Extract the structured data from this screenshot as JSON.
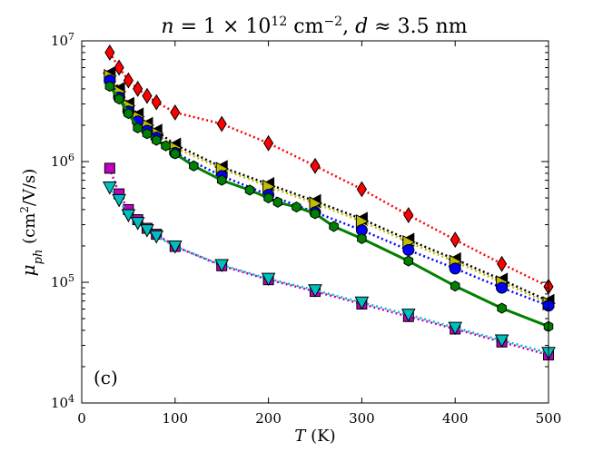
{
  "chart_data": {
    "type": "line",
    "title": "n = 1 × 10^12 cm^−2, d ≈ 3.5 nm",
    "title_parts": {
      "pre": "n",
      "mid": " = 1 × 10",
      "exp": "12",
      "unit": " cm",
      "unit_exp": "−2",
      "comma": ",",
      "d": " d",
      "rest": " ≈ 3.5 nm"
    },
    "xlabel": "T (K)",
    "xlabel_parts": {
      "var": "T",
      "unit": " (K)"
    },
    "ylabel": "μ_ph (cm²/V/s)",
    "ylabel_parts": {
      "var": "μ",
      "sub": "ph",
      "unit": " (cm",
      "unit_exp": "2",
      "unit_rest": "/V/s)"
    },
    "panel_label": "(c)",
    "xlim": [
      0,
      500
    ],
    "ylim": [
      10000,
      10000000
    ],
    "yscale": "log",
    "x_ticks": [
      0,
      100,
      200,
      300,
      400,
      500
    ],
    "x_tick_labels": [
      "0",
      "100",
      "200",
      "300",
      "400",
      "500"
    ],
    "y_ticks": [
      10000,
      100000,
      1000000,
      10000000
    ],
    "y_tick_labels": [
      {
        "base": "10",
        "exp": "4"
      },
      {
        "base": "10",
        "exp": "5"
      },
      {
        "base": "10",
        "exp": "6"
      },
      {
        "base": "10",
        "exp": "7"
      }
    ],
    "series": [
      {
        "name": "red-diamond",
        "color": "#ff0000",
        "marker": "diamond",
        "line": "dotted",
        "x": [
          30,
          40,
          50,
          60,
          70,
          80,
          100,
          150,
          200,
          250,
          300,
          350,
          400,
          450,
          500
        ],
        "y": [
          8000000,
          6000000,
          4700000,
          4000000,
          3500000,
          3100000,
          2550000,
          2050000,
          1420000,
          920000,
          590000,
          360000,
          225000,
          142000,
          92000
        ]
      },
      {
        "name": "black-triangle-left",
        "color": "#000000",
        "marker": "triangle-left",
        "line": "dotted",
        "x": [
          30,
          40,
          50,
          60,
          70,
          80,
          100,
          150,
          200,
          250,
          300,
          350,
          400,
          450,
          500
        ],
        "y": [
          5400000,
          4000000,
          3000000,
          2450000,
          2050000,
          1800000,
          1380000,
          900000,
          650000,
          470000,
          335000,
          225000,
          155000,
          105000,
          70000
        ]
      },
      {
        "name": "yellow-triangle-right",
        "color": "#bfbf00",
        "marker": "triangle-right",
        "line": "dotted",
        "x": [
          30,
          40,
          50,
          60,
          70,
          80,
          100,
          150,
          200,
          250,
          300,
          350,
          400,
          450,
          500
        ],
        "y": [
          5100000,
          3800000,
          2900000,
          2350000,
          2000000,
          1720000,
          1300000,
          870000,
          620000,
          450000,
          320000,
          215000,
          148000,
          100000,
          67000
        ]
      },
      {
        "name": "blue-circle",
        "color": "#0000ff",
        "marker": "circle",
        "line": "dotted",
        "x": [
          30,
          40,
          50,
          60,
          70,
          80,
          100,
          150,
          200,
          250,
          300,
          350,
          400,
          450,
          500
        ],
        "y": [
          4700000,
          3400000,
          2600000,
          2150000,
          1800000,
          1580000,
          1180000,
          760000,
          530000,
          380000,
          270000,
          185000,
          130000,
          90000,
          64000
        ]
      },
      {
        "name": "green-hexagon",
        "color": "#008000",
        "marker": "hexagon",
        "line": "solid",
        "x": [
          30,
          40,
          50,
          60,
          70,
          80,
          90,
          100,
          120,
          150,
          180,
          200,
          210,
          230,
          250,
          270,
          300,
          350,
          400,
          450,
          500
        ],
        "y": [
          4200000,
          3300000,
          2500000,
          1900000,
          1700000,
          1500000,
          1350000,
          1160000,
          920000,
          700000,
          580000,
          500000,
          460000,
          420000,
          370000,
          290000,
          230000,
          150000,
          93000,
          61000,
          43000
        ]
      },
      {
        "name": "magenta-square",
        "color": "#bf00bf",
        "marker": "square",
        "line": "dotted",
        "x": [
          30,
          40,
          50,
          60,
          70,
          80,
          100,
          150,
          200,
          250,
          300,
          350,
          400,
          450,
          500
        ],
        "y": [
          880000,
          540000,
          400000,
          330000,
          280000,
          250000,
          198000,
          137000,
          105000,
          84000,
          66000,
          52000,
          41000,
          32000,
          25000
        ]
      },
      {
        "name": "cyan-triangle-down",
        "color": "#00bfbf",
        "marker": "triangle-down",
        "line": "dotted",
        "x": [
          30,
          40,
          50,
          60,
          70,
          80,
          100,
          150,
          200,
          250,
          300,
          350,
          400,
          450,
          500
        ],
        "y": [
          610000,
          480000,
          360000,
          310000,
          270000,
          240000,
          198000,
          139000,
          107000,
          86000,
          68000,
          54000,
          42000,
          33000,
          26000
        ]
      }
    ]
  }
}
